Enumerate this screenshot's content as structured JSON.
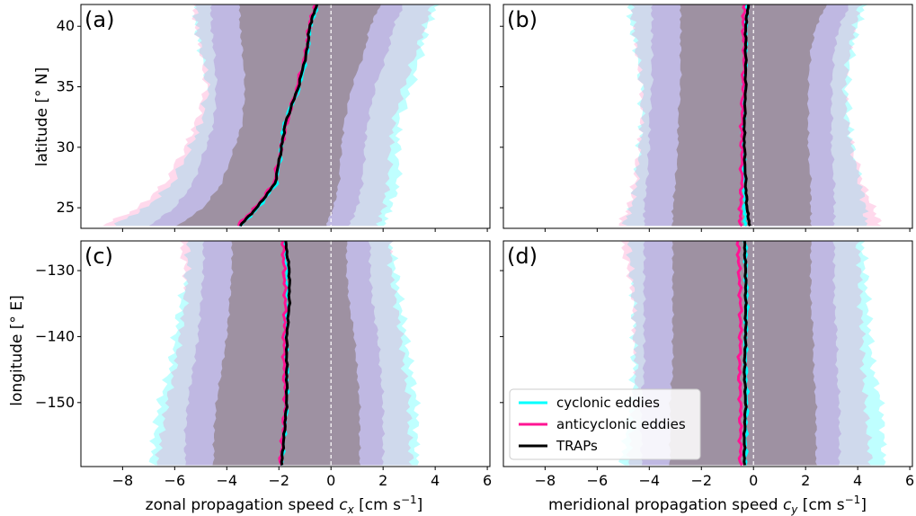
{
  "chart_data": [
    {
      "panel": "(a)",
      "type": "area",
      "xlabel": "",
      "ylabel": "latitude [° N]",
      "xlim": [
        -9.6,
        6.1
      ],
      "ylim": [
        23.3,
        41.8
      ],
      "xticks": [
        -8,
        -6,
        -4,
        -2,
        0,
        2,
        4,
        6
      ],
      "yticks": [
        25,
        30,
        35,
        40
      ],
      "y": [
        23.5,
        25,
        27,
        30,
        32,
        35,
        38,
        40,
        41.8
      ],
      "series": [
        {
          "name": "cyclonic eddies",
          "color": "#00ffff",
          "center": [
            -3.5,
            -2.8,
            -2.1,
            -1.9,
            -1.8,
            -1.2,
            -0.9,
            -0.8,
            -0.5
          ],
          "outer_lo": [
            -8.4,
            -7.1,
            -6.1,
            -5.4,
            -5.0,
            -4.7,
            -5.0,
            -5.2,
            -5.2
          ],
          "outer_hi": [
            2.0,
            2.3,
            2.6,
            2.6,
            2.6,
            3.1,
            3.5,
            3.7,
            4.1
          ]
        },
        {
          "name": "anticyclonic eddies",
          "color": "#ff1493",
          "center": [
            -3.6,
            -2.9,
            -2.2,
            -1.9,
            -1.7,
            -1.3,
            -0.95,
            -0.85,
            -0.6
          ],
          "outer_lo": [
            -8.8,
            -7.4,
            -6.4,
            -5.6,
            -5.2,
            -4.8,
            -5.0,
            -5.2,
            -5.3
          ],
          "outer_hi": [
            1.8,
            2.0,
            2.2,
            2.3,
            2.4,
            2.8,
            3.3,
            3.6,
            3.9
          ]
        },
        {
          "name": "TRAPs",
          "color": "#000000",
          "center": [
            -3.5,
            -2.85,
            -2.15,
            -1.9,
            -1.75,
            -1.25,
            -0.92,
            -0.82,
            -0.55
          ],
          "inner_lo": [
            -7.0,
            -6.0,
            -5.3,
            -4.8,
            -4.5,
            -4.4,
            -4.5,
            -4.6,
            -4.6
          ],
          "inner_hi": [
            0.7,
            1.0,
            1.2,
            1.3,
            1.4,
            1.7,
            2.2,
            2.4,
            2.8
          ]
        }
      ]
    },
    {
      "panel": "(b)",
      "type": "area",
      "xlabel": "",
      "ylabel": "",
      "xlim": [
        -9.6,
        6.1
      ],
      "ylim": [
        23.3,
        41.8
      ],
      "xticks": [
        -8,
        -6,
        -4,
        -2,
        0,
        2,
        4,
        6
      ],
      "yticks": [
        25,
        30,
        35,
        40
      ],
      "y": [
        23.5,
        25,
        27,
        30,
        32,
        35,
        38,
        40,
        41.8
      ],
      "series": [
        {
          "name": "cyclonic eddies",
          "color": "#00ffff",
          "center": [
            -0.3,
            -0.35,
            -0.35,
            -0.4,
            -0.4,
            -0.35,
            -0.3,
            -0.3,
            -0.25
          ],
          "outer_lo": [
            -5.0,
            -4.7,
            -4.5,
            -4.4,
            -4.3,
            -4.3,
            -4.5,
            -4.7,
            -4.8
          ],
          "outer_hi": [
            4.3,
            4.3,
            4.1,
            3.8,
            3.7,
            3.6,
            3.8,
            4.0,
            4.3
          ]
        },
        {
          "name": "anticyclonic eddies",
          "color": "#ff1493",
          "center": [
            -0.5,
            -0.5,
            -0.45,
            -0.45,
            -0.45,
            -0.4,
            -0.35,
            -0.4,
            -0.35
          ],
          "outer_lo": [
            -5.2,
            -4.8,
            -4.6,
            -4.4,
            -4.3,
            -4.3,
            -4.5,
            -4.6,
            -4.7
          ],
          "outer_hi": [
            4.9,
            4.6,
            4.2,
            3.8,
            3.6,
            3.5,
            3.7,
            3.9,
            4.1
          ]
        },
        {
          "name": "TRAPs",
          "color": "#000000",
          "center": [
            -0.15,
            -0.25,
            -0.3,
            -0.35,
            -0.35,
            -0.3,
            -0.3,
            -0.3,
            -0.2
          ],
          "inner_lo": [
            -4.2,
            -4.2,
            -4.1,
            -4.0,
            -4.0,
            -3.9,
            -3.9,
            -3.9,
            -3.9
          ],
          "inner_hi": [
            3.1,
            3.1,
            3.1,
            3.0,
            3.0,
            3.0,
            3.1,
            3.3,
            3.7
          ]
        }
      ]
    },
    {
      "panel": "(c)",
      "type": "area",
      "xlabel": "zonal propagation speed c_x [cm s⁻¹]",
      "ylabel": "longitude [° E]",
      "xlim": [
        -9.6,
        6.1
      ],
      "ylim": [
        -159.7,
        -125.5
      ],
      "xticks": [
        -8,
        -6,
        -4,
        -2,
        0,
        2,
        4,
        6
      ],
      "yticks": [
        -150,
        -140,
        -130
      ],
      "y": [
        -159.5,
        -155,
        -150,
        -145,
        -140,
        -135,
        -130,
        -125.5
      ],
      "series": [
        {
          "name": "cyclonic eddies",
          "color": "#00ffff",
          "center": [
            -1.9,
            -1.8,
            -1.7,
            -1.7,
            -1.75,
            -1.7,
            -1.7,
            -1.8
          ],
          "outer_lo": [
            -6.9,
            -6.8,
            -6.6,
            -6.2,
            -6.0,
            -5.8,
            -5.5,
            -5.5
          ],
          "outer_hi": [
            3.3,
            3.3,
            3.3,
            3.1,
            2.9,
            2.7,
            2.5,
            2.3
          ]
        },
        {
          "name": "anticyclonic eddies",
          "color": "#ff1493",
          "center": [
            -1.95,
            -1.85,
            -1.75,
            -1.8,
            -1.8,
            -1.75,
            -1.8,
            -1.85
          ],
          "outer_lo": [
            -6.7,
            -6.5,
            -6.3,
            -6.0,
            -5.8,
            -5.6,
            -5.6,
            -5.8
          ],
          "outer_hi": [
            3.1,
            3.0,
            3.0,
            2.8,
            2.7,
            2.5,
            2.3,
            2.3
          ]
        },
        {
          "name": "TRAPs",
          "color": "#000000",
          "center": [
            -1.9,
            -1.8,
            -1.7,
            -1.7,
            -1.7,
            -1.6,
            -1.6,
            -1.75
          ],
          "inner_lo": [
            -5.6,
            -5.6,
            -5.5,
            -5.3,
            -5.1,
            -5.0,
            -4.9,
            -4.9
          ],
          "inner_hi": [
            2.0,
            2.0,
            2.0,
            1.9,
            1.8,
            1.6,
            1.5,
            1.5
          ]
        }
      ]
    },
    {
      "panel": "(d)",
      "type": "area",
      "xlabel": "meridional propagation speed c_y [cm s⁻¹]",
      "ylabel": "",
      "xlim": [
        -9.6,
        6.1
      ],
      "ylim": [
        -159.7,
        -125.5
      ],
      "xticks": [
        -8,
        -6,
        -4,
        -2,
        0,
        2,
        4,
        6
      ],
      "yticks": [
        -150,
        -140,
        -130
      ],
      "y": [
        -159.5,
        -155,
        -150,
        -145,
        -140,
        -135,
        -130,
        -125.5
      ],
      "series": [
        {
          "name": "cyclonic eddies",
          "color": "#00ffff",
          "center": [
            -0.3,
            -0.3,
            -0.25,
            -0.3,
            -0.3,
            -0.25,
            -0.3,
            -0.3
          ],
          "outer_lo": [
            -5.1,
            -4.9,
            -4.7,
            -4.6,
            -4.6,
            -4.6,
            -4.7,
            -4.8
          ],
          "outer_hi": [
            5.0,
            5.0,
            4.9,
            4.6,
            4.5,
            4.4,
            4.3,
            4.2
          ]
        },
        {
          "name": "anticyclonic eddies",
          "color": "#ff1493",
          "center": [
            -0.5,
            -0.5,
            -0.5,
            -0.55,
            -0.5,
            -0.5,
            -0.55,
            -0.6
          ],
          "outer_lo": [
            -4.8,
            -4.7,
            -4.6,
            -4.5,
            -4.6,
            -4.6,
            -4.8,
            -5.1
          ],
          "outer_hi": [
            4.5,
            4.4,
            4.3,
            4.2,
            4.2,
            4.1,
            4.1,
            4.0
          ]
        },
        {
          "name": "TRAPs",
          "color": "#000000",
          "center": [
            -0.35,
            -0.35,
            -0.3,
            -0.35,
            -0.3,
            -0.3,
            -0.3,
            -0.35
          ],
          "inner_lo": [
            -4.3,
            -4.3,
            -4.3,
            -4.2,
            -4.2,
            -4.2,
            -4.2,
            -4.2
          ],
          "inner_hi": [
            3.3,
            3.3,
            3.3,
            3.2,
            3.2,
            3.1,
            3.1,
            3.1
          ]
        }
      ]
    }
  ],
  "legend": {
    "placement": "lower-left of panel (d)",
    "entries": [
      {
        "label": "cyclonic eddies",
        "color": "#00ffff"
      },
      {
        "label": "anticyclonic eddies",
        "color": "#ff1493"
      },
      {
        "label": "TRAPs",
        "color": "#000000"
      }
    ]
  },
  "colors": {
    "cyclonic_fill": "#00ffff",
    "anticyclonic_fill": "#ff69b4",
    "trap_fill": "#b39ddb",
    "overlap_fill": "#9c8e9e",
    "zero_line": "#ffffff"
  }
}
